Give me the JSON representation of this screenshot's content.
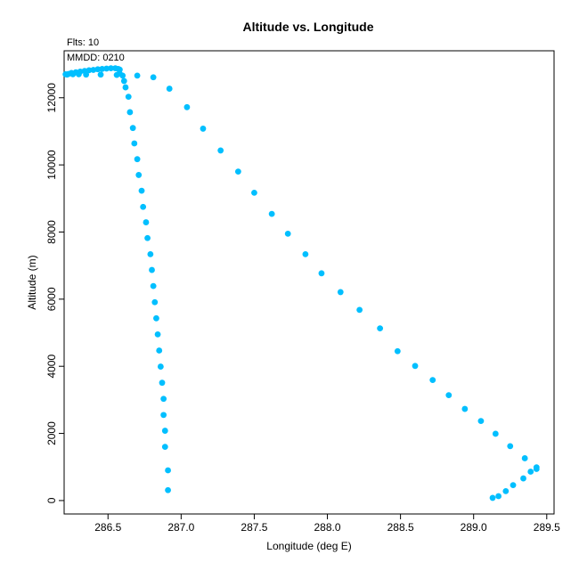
{
  "chart_data": {
    "type": "scatter",
    "title": "Altitude vs. Longitude",
    "subtitle": "Flts: 10",
    "annotation": "MMDD: 0210",
    "xlabel": "Longitude (deg E)",
    "ylabel": "Altitude (m)",
    "xlim": [
      286.2,
      289.55
    ],
    "ylim": [
      -400,
      13400
    ],
    "xticks": [
      286.5,
      287.0,
      287.5,
      288.0,
      288.5,
      289.0,
      289.5
    ],
    "xtick_labels": [
      "286.5",
      "287.0",
      "287.5",
      "288.0",
      "288.5",
      "289.0",
      "289.5"
    ],
    "yticks": [
      0,
      2000,
      4000,
      6000,
      8000,
      10000,
      12000
    ],
    "ytick_labels": [
      "0",
      "2000",
      "4000",
      "6000",
      "8000",
      "10000",
      "12000"
    ],
    "grid": false,
    "marker_color": "#00bfff",
    "points": [
      [
        286.91,
        310
      ],
      [
        286.91,
        900
      ],
      [
        286.89,
        1600
      ],
      [
        286.89,
        2080
      ],
      [
        286.88,
        2550
      ],
      [
        286.88,
        3030
      ],
      [
        286.87,
        3510
      ],
      [
        286.86,
        3990
      ],
      [
        286.85,
        4470
      ],
      [
        286.84,
        4950
      ],
      [
        286.83,
        5430
      ],
      [
        286.82,
        5910
      ],
      [
        286.81,
        6390
      ],
      [
        286.8,
        6870
      ],
      [
        286.79,
        7340
      ],
      [
        286.77,
        7820
      ],
      [
        286.76,
        8290
      ],
      [
        286.74,
        8750
      ],
      [
        286.73,
        9230
      ],
      [
        286.71,
        9700
      ],
      [
        286.7,
        10170
      ],
      [
        286.68,
        10640
      ],
      [
        286.67,
        11100
      ],
      [
        286.65,
        11570
      ],
      [
        286.64,
        12030
      ],
      [
        286.62,
        12310
      ],
      [
        286.61,
        12500
      ],
      [
        286.6,
        12660
      ],
      [
        286.58,
        12720
      ],
      [
        286.58,
        12840
      ],
      [
        286.57,
        12860
      ],
      [
        286.55,
        12880
      ],
      [
        286.52,
        12880
      ],
      [
        286.49,
        12870
      ],
      [
        286.46,
        12860
      ],
      [
        286.43,
        12850
      ],
      [
        286.4,
        12830
      ],
      [
        286.37,
        12820
      ],
      [
        286.34,
        12800
      ],
      [
        286.31,
        12780
      ],
      [
        286.28,
        12760
      ],
      [
        286.25,
        12740
      ],
      [
        286.23,
        12710
      ],
      [
        286.21,
        12700
      ],
      [
        286.22,
        12690
      ],
      [
        286.26,
        12700
      ],
      [
        286.3,
        12700
      ],
      [
        286.35,
        12690
      ],
      [
        286.45,
        12690
      ],
      [
        286.56,
        12680
      ],
      [
        286.7,
        12660
      ],
      [
        286.81,
        12610
      ],
      [
        286.92,
        12270
      ],
      [
        287.04,
        11720
      ],
      [
        287.15,
        11080
      ],
      [
        287.27,
        10430
      ],
      [
        287.39,
        9800
      ],
      [
        287.5,
        9170
      ],
      [
        287.62,
        8540
      ],
      [
        287.73,
        7950
      ],
      [
        287.85,
        7340
      ],
      [
        287.96,
        6770
      ],
      [
        288.09,
        6210
      ],
      [
        288.22,
        5680
      ],
      [
        288.36,
        5130
      ],
      [
        288.48,
        4450
      ],
      [
        288.6,
        4010
      ],
      [
        288.72,
        3590
      ],
      [
        288.83,
        3140
      ],
      [
        288.94,
        2730
      ],
      [
        289.05,
        2370
      ],
      [
        289.15,
        1990
      ],
      [
        289.25,
        1620
      ],
      [
        289.35,
        1260
      ],
      [
        289.43,
        990
      ],
      [
        289.43,
        940
      ],
      [
        289.39,
        860
      ],
      [
        289.34,
        660
      ],
      [
        289.27,
        460
      ],
      [
        289.22,
        280
      ],
      [
        289.17,
        130
      ],
      [
        289.13,
        80
      ]
    ]
  }
}
